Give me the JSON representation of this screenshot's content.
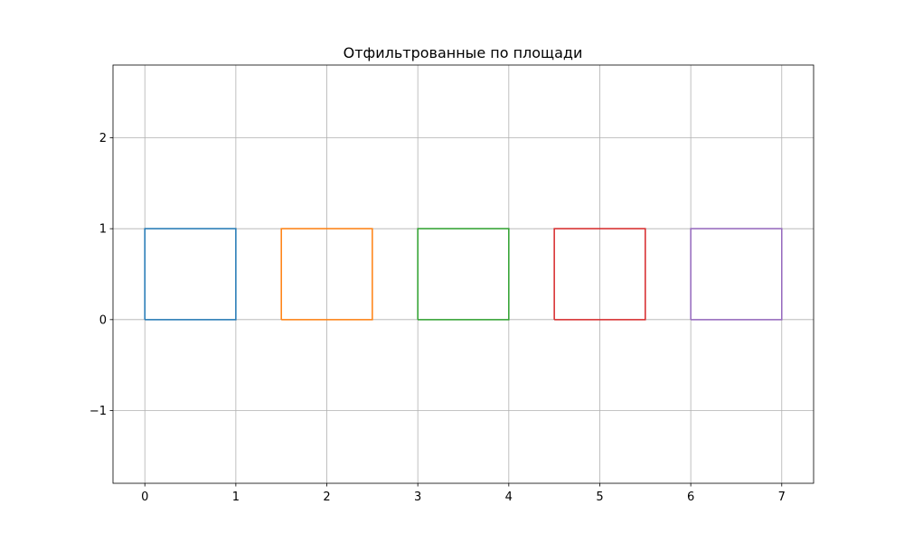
{
  "chart_data": {
    "type": "line",
    "title": "Отфильтрованные по площади",
    "xlabel": "",
    "ylabel": "",
    "xlim": [
      -0.35,
      7.35
    ],
    "ylim": [
      -1.8,
      2.8
    ],
    "x_ticks": [
      0,
      1,
      2,
      3,
      4,
      5,
      6,
      7
    ],
    "x_tick_labels": [
      "0",
      "1",
      "2",
      "3",
      "4",
      "5",
      "6",
      "7"
    ],
    "y_ticks": [
      -1,
      0,
      1,
      2
    ],
    "y_tick_labels": [
      "−1",
      "0",
      "1",
      "2"
    ],
    "grid": true,
    "legend": "none",
    "series": [
      {
        "color": "#1f77b4",
        "x": [
          0,
          1,
          1,
          0,
          0
        ],
        "y": [
          0,
          0,
          1,
          1,
          0
        ]
      },
      {
        "color": "#ff7f0e",
        "x": [
          1.5,
          2.5,
          2.5,
          1.5,
          1.5
        ],
        "y": [
          0,
          0,
          1,
          1,
          0
        ]
      },
      {
        "color": "#2ca02c",
        "x": [
          3,
          4,
          4,
          3,
          3
        ],
        "y": [
          0,
          0,
          1,
          1,
          0
        ]
      },
      {
        "color": "#d62728",
        "x": [
          4.5,
          5.5,
          5.5,
          4.5,
          4.5
        ],
        "y": [
          0,
          0,
          1,
          1,
          0
        ]
      },
      {
        "color": "#9467bd",
        "x": [
          6,
          7,
          7,
          6,
          6
        ],
        "y": [
          0,
          0,
          1,
          1,
          0
        ]
      }
    ]
  }
}
